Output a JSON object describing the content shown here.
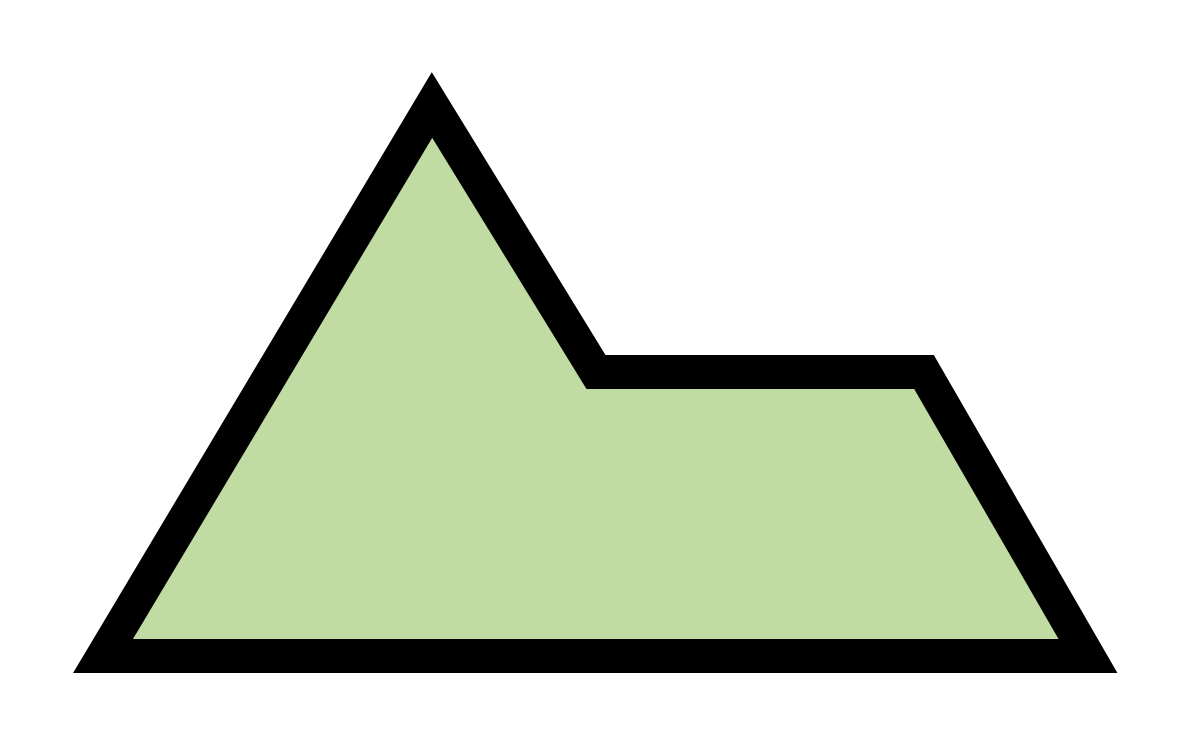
{
  "figure": {
    "background_color": "#ffffff",
    "shape": {
      "kind": "irregular pentagon",
      "fill_color": "#c0dca2",
      "stroke_color": "#000000"
    }
  }
}
